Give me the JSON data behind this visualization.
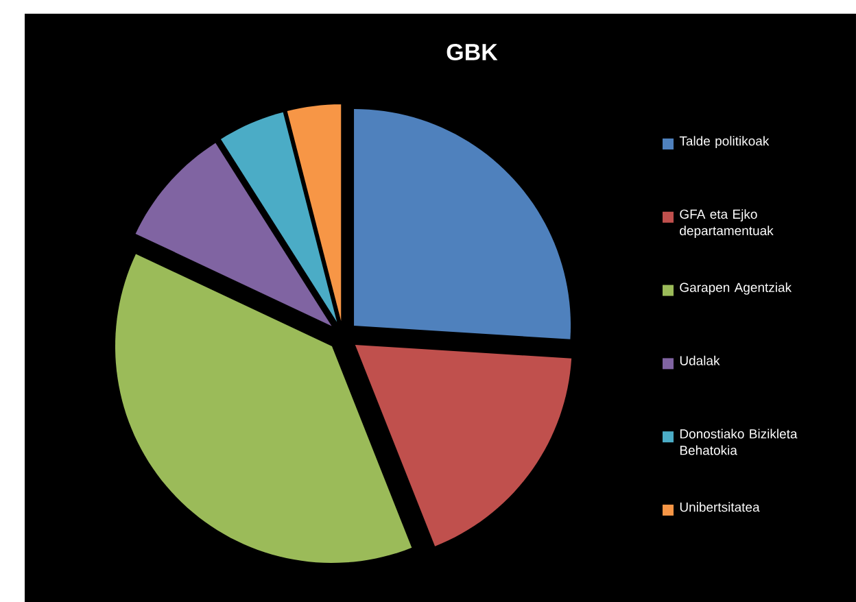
{
  "chart_data": {
    "type": "pie",
    "title": "GBK",
    "legend": "right",
    "categories": [
      "Talde politikoak",
      "GFA eta Ejko departamentuak",
      "Garapen Agentziak",
      "Udalak",
      "Donostiako Bizikleta Behatokia",
      "Unibertsitatea"
    ],
    "values": [
      26,
      18,
      38,
      9,
      5,
      4
    ],
    "colors": [
      "#4f81bd",
      "#c0504d",
      "#9bbb59",
      "#8064a2",
      "#4bacc6",
      "#f79646"
    ]
  }
}
